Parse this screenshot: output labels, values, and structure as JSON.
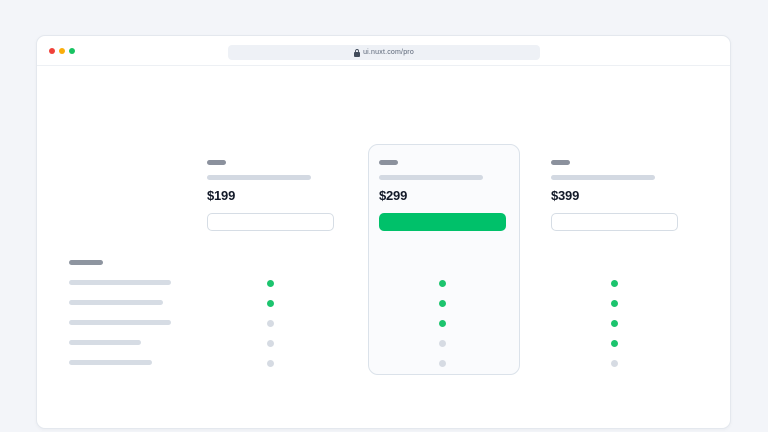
{
  "browser": {
    "url": "ui.nuxt.com/pro",
    "window_controls": [
      "close",
      "minimize",
      "zoom"
    ]
  },
  "pricing_page": {
    "plans": [
      {
        "price": "$199",
        "highlighted": false,
        "button_style": "outline",
        "features": [
          true,
          true,
          false,
          false,
          false
        ]
      },
      {
        "price": "$299",
        "highlighted": true,
        "button_style": "solid",
        "features": [
          true,
          true,
          true,
          false,
          false
        ]
      },
      {
        "price": "$399",
        "highlighted": false,
        "button_style": "outline",
        "features": [
          true,
          true,
          true,
          true,
          false
        ]
      }
    ],
    "feature_rows": 5
  },
  "colors": {
    "accent_green": "#00c16a",
    "included_dot_green": "#1cc46e",
    "excluded_dot_gray": "#d6dbe3",
    "traffic_red": "#f0413a",
    "traffic_yellow": "#faad0b",
    "traffic_green": "#18c362",
    "page_background": "#f3f5f9"
  }
}
